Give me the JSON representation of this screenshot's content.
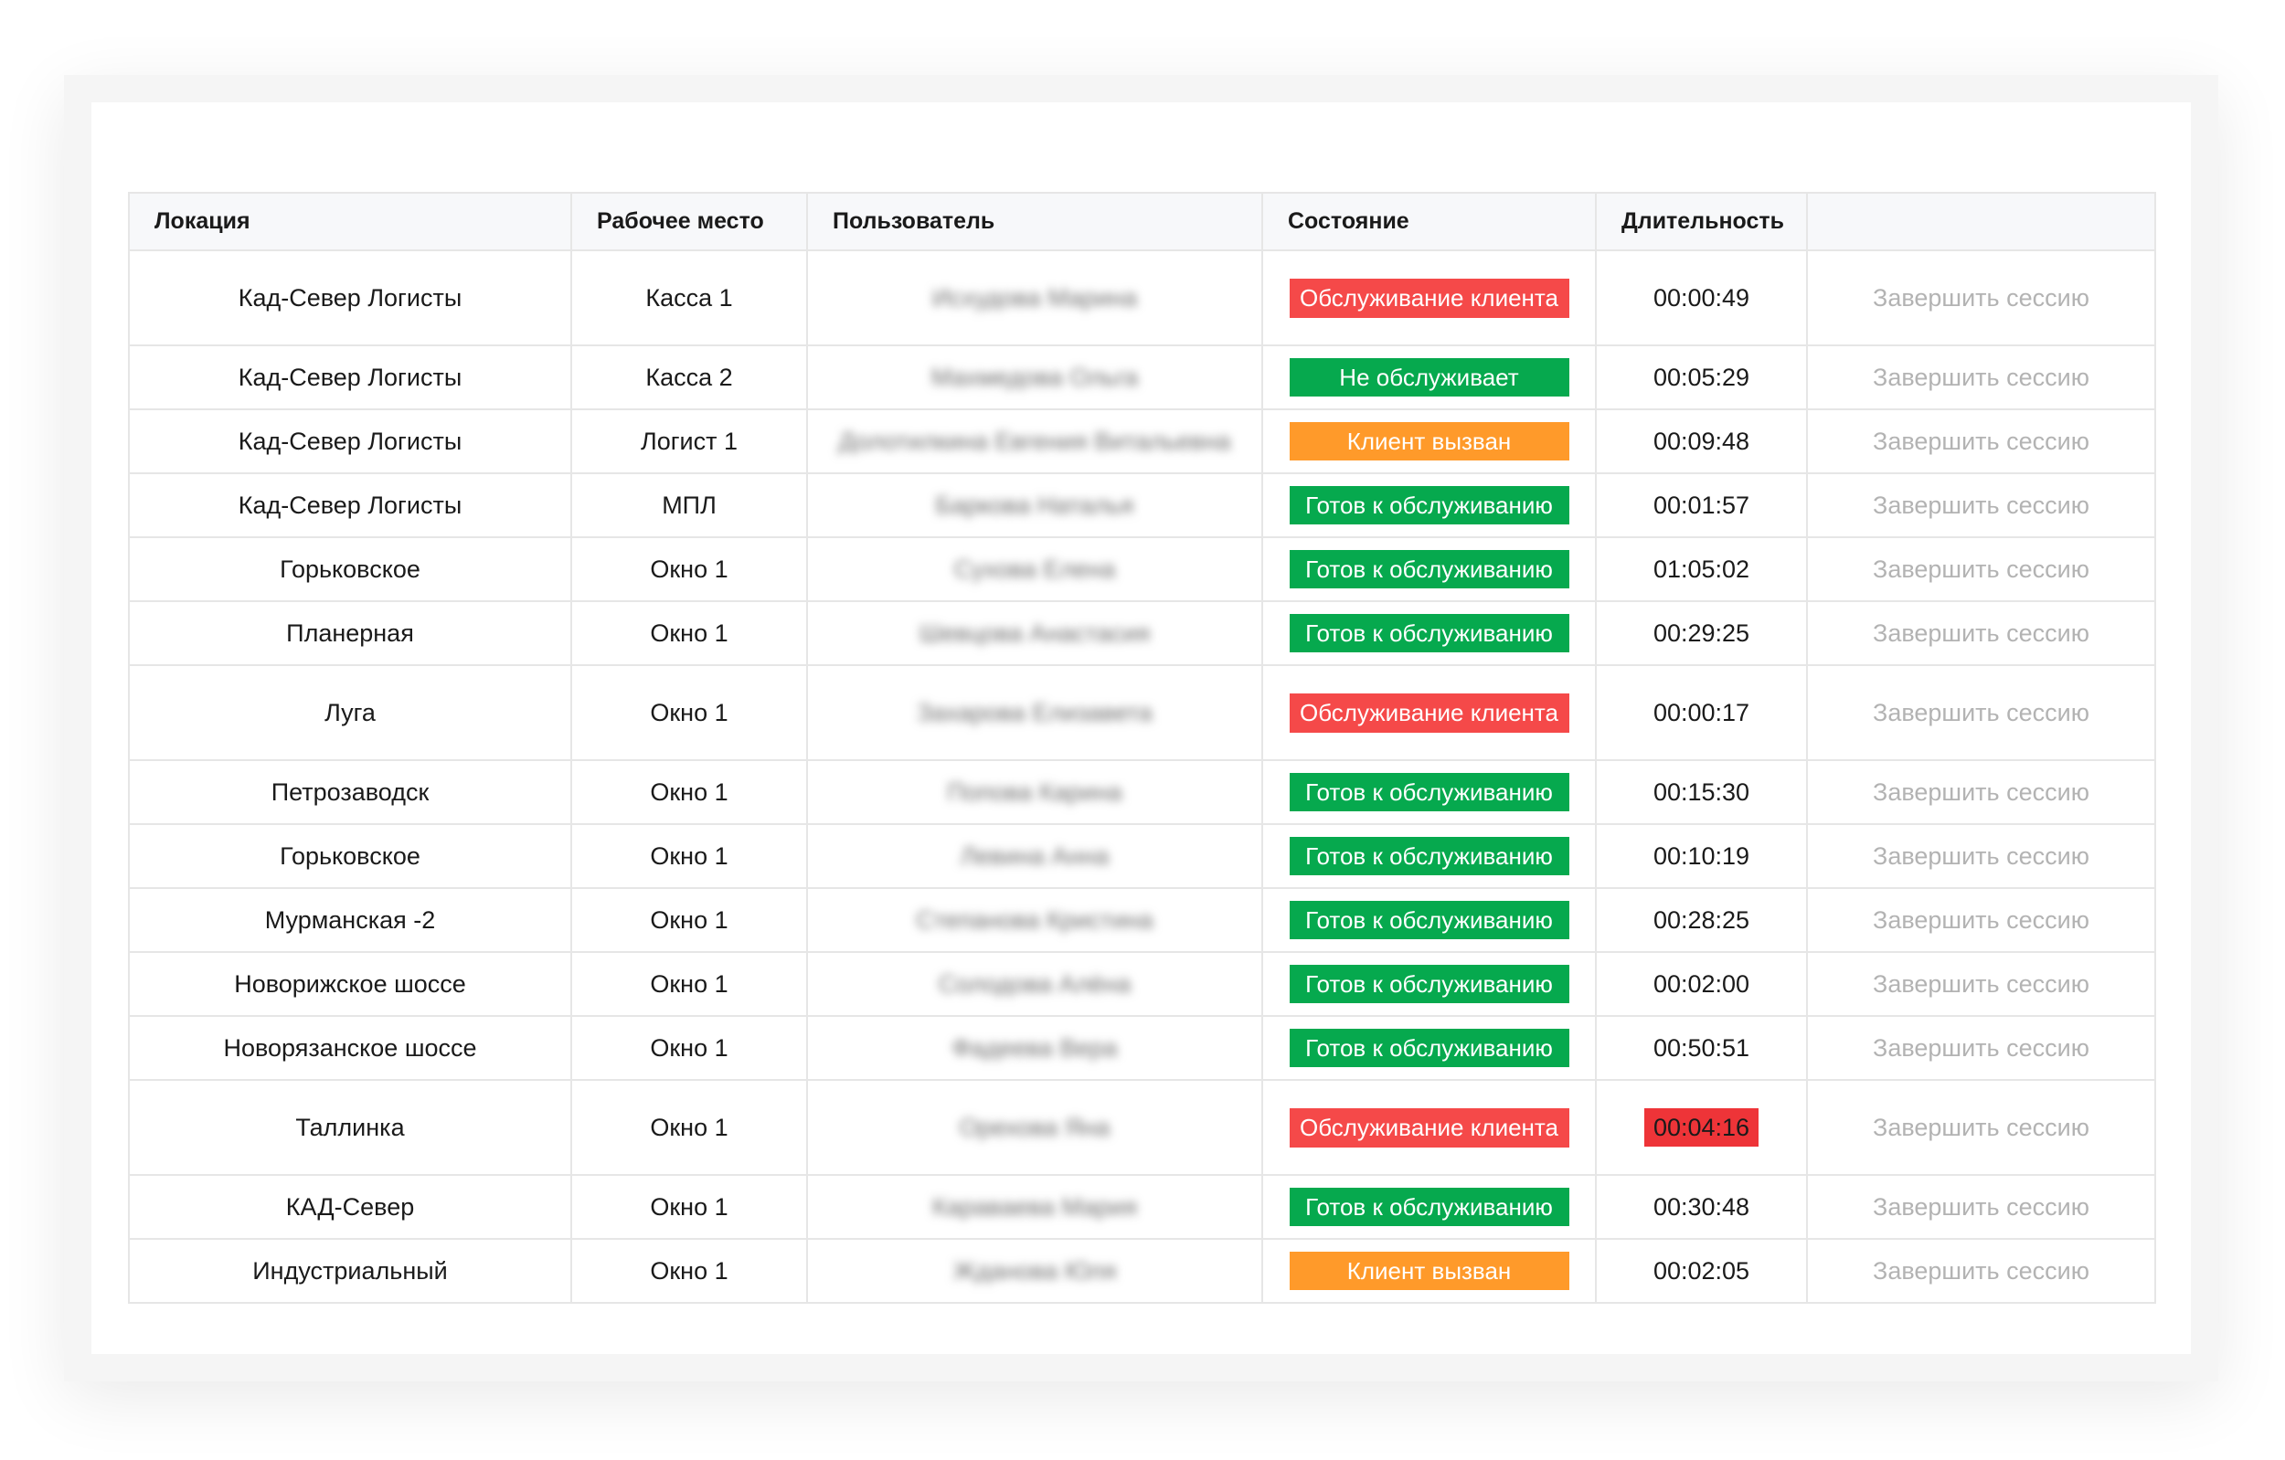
{
  "colors": {
    "serving": "#f54949",
    "idle": "#06a94e",
    "called": "#ff9a2a",
    "duration_alert": "#ee3438",
    "link": "#b3b3b3"
  },
  "table": {
    "headers": [
      "Локация",
      "Рабочее место",
      "Пользователь",
      "Состояние",
      "Длительность",
      ""
    ],
    "action_label": "Завершить сессию",
    "rows": [
      {
        "location": "Кад-Север Логисты",
        "workplace": "Касса 1",
        "user": "Исхудова Марина",
        "state": "Обслуживание клиента",
        "state_type": "serving",
        "duration": "00:00:49",
        "duration_alert": false
      },
      {
        "location": "Кад-Север Логисты",
        "workplace": "Касса 2",
        "user": "Махмедова Ольга",
        "state": "Не обслуживает",
        "state_type": "idle",
        "duration": "00:05:29",
        "duration_alert": false
      },
      {
        "location": "Кад-Север Логисты",
        "workplace": "Логист 1",
        "user": "Долотилкина Евгения Витальевна",
        "state": "Клиент вызван",
        "state_type": "called",
        "duration": "00:09:48",
        "duration_alert": false
      },
      {
        "location": "Кад-Север Логисты",
        "workplace": "МПЛ",
        "user": "Баркова Наталья",
        "state": "Готов к обслуживанию",
        "state_type": "idle",
        "duration": "00:01:57",
        "duration_alert": false
      },
      {
        "location": "Горьковское",
        "workplace": "Окно 1",
        "user": "Сухова Елена",
        "state": "Готов к обслуживанию",
        "state_type": "idle",
        "duration": "01:05:02",
        "duration_alert": false
      },
      {
        "location": "Планерная",
        "workplace": "Окно 1",
        "user": "Шевцова Анастасия",
        "state": "Готов к обслуживанию",
        "state_type": "idle",
        "duration": "00:29:25",
        "duration_alert": false
      },
      {
        "location": "Луга",
        "workplace": "Окно 1",
        "user": "Захарова Елизавета",
        "state": "Обслуживание клиента",
        "state_type": "serving",
        "duration": "00:00:17",
        "duration_alert": false
      },
      {
        "location": "Петрозаводск",
        "workplace": "Окно 1",
        "user": "Попова Карина",
        "state": "Готов к обслуживанию",
        "state_type": "idle",
        "duration": "00:15:30",
        "duration_alert": false
      },
      {
        "location": "Горьковское",
        "workplace": "Окно 1",
        "user": "Левина Анна",
        "state": "Готов к обслуживанию",
        "state_type": "idle",
        "duration": "00:10:19",
        "duration_alert": false
      },
      {
        "location": "Мурманская -2",
        "workplace": "Окно 1",
        "user": "Степанова Кристина",
        "state": "Готов к обслуживанию",
        "state_type": "idle",
        "duration": "00:28:25",
        "duration_alert": false
      },
      {
        "location": "Новорижское шоссе",
        "workplace": "Окно 1",
        "user": "Солодова Алёна",
        "state": "Готов к обслуживанию",
        "state_type": "idle",
        "duration": "00:02:00",
        "duration_alert": false
      },
      {
        "location": "Новорязанское шоссе",
        "workplace": "Окно 1",
        "user": "Фадеева Вера",
        "state": "Готов к обслуживанию",
        "state_type": "idle",
        "duration": "00:50:51",
        "duration_alert": false
      },
      {
        "location": "Таллинка",
        "workplace": "Окно 1",
        "user": "Орехова Яна",
        "state": "Обслуживание клиента",
        "state_type": "serving",
        "duration": "00:04:16",
        "duration_alert": true
      },
      {
        "location": "КАД-Север",
        "workplace": "Окно 1",
        "user": "Караваева Мария",
        "state": "Готов к обслуживанию",
        "state_type": "idle",
        "duration": "00:30:48",
        "duration_alert": false
      },
      {
        "location": "Индустриальный",
        "workplace": "Окно 1",
        "user": "Жданова Юля",
        "state": "Клиент вызван",
        "state_type": "called",
        "duration": "00:02:05",
        "duration_alert": false
      }
    ]
  }
}
